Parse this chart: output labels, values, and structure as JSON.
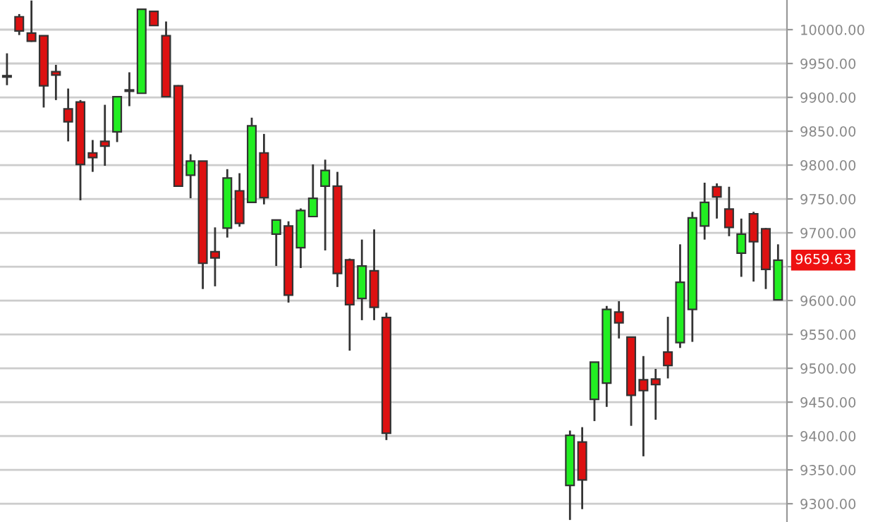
{
  "chart_data": {
    "type": "candlestick",
    "categories": [
      null,
      null,
      null,
      null,
      null,
      null,
      null,
      null,
      null,
      null,
      null,
      null,
      null,
      null,
      null,
      null,
      null,
      null,
      null,
      null,
      null,
      null,
      null,
      null,
      null,
      null,
      null,
      null,
      null,
      null,
      null,
      null,
      null,
      null,
      null,
      null,
      null,
      null,
      null,
      null,
      null,
      null,
      null,
      null,
      null,
      null,
      null,
      null,
      null,
      null,
      null,
      null,
      null,
      null,
      null,
      null,
      null,
      null,
      null,
      null,
      null,
      null,
      null,
      null
    ],
    "ohlc": [
      [
        9932,
        9965,
        9918,
        9930
      ],
      [
        10019,
        10023,
        9992,
        9998
      ],
      [
        9995,
        10043,
        9982,
        9983
      ],
      [
        9991,
        9991,
        9885,
        9917
      ],
      [
        9938,
        9948,
        9896,
        9933
      ],
      [
        9883,
        9913,
        9835,
        9864
      ],
      [
        9893,
        9896,
        9748,
        9801
      ],
      [
        9818,
        9837,
        9790,
        9811
      ],
      [
        9835,
        9889,
        9799,
        9828
      ],
      [
        9849,
        9901,
        9834,
        9901
      ],
      [
        9910,
        9937,
        9887,
        9910
      ],
      [
        9906,
        10030,
        9906,
        10030
      ],
      [
        10027,
        10027,
        10006,
        10006
      ],
      [
        9991,
        10012,
        9901,
        9901
      ],
      [
        9917,
        9918,
        9769,
        9769
      ],
      [
        9785,
        9816,
        9751,
        9806
      ],
      [
        9806,
        9806,
        9617,
        9655
      ],
      [
        9672,
        9708,
        9621,
        9663
      ],
      [
        9707,
        9794,
        9693,
        9781
      ],
      [
        9762,
        9788,
        9709,
        9714
      ],
      [
        9745,
        9870,
        9745,
        9858
      ],
      [
        9818,
        9846,
        9742,
        9752
      ],
      [
        9698,
        9719,
        9651,
        9719
      ],
      [
        9710,
        9717,
        9597,
        9608
      ],
      [
        9678,
        9736,
        9648,
        9733
      ],
      [
        9724,
        9801,
        9724,
        9751
      ],
      [
        9769,
        9808,
        9674,
        9792
      ],
      [
        9769,
        9790,
        9620,
        9640
      ],
      [
        9660,
        9662,
        9526,
        9594
      ],
      [
        9603,
        9690,
        9571,
        9651
      ],
      [
        9644,
        9705,
        9571,
        9590
      ],
      [
        9575,
        9582,
        9394,
        9404
      ],
      null,
      null,
      null,
      null,
      null,
      null,
      null,
      null,
      null,
      null,
      null,
      null,
      null,
      null,
      [
        9327,
        9408,
        9276,
        9401
      ],
      [
        9391,
        9413,
        9292,
        9335
      ],
      [
        9454,
        9509,
        9422,
        9509
      ],
      [
        9478,
        9592,
        9443,
        9587
      ],
      [
        9583,
        9599,
        9544,
        9567
      ],
      [
        9546,
        9546,
        9415,
        9460
      ],
      [
        9483,
        9518,
        9370,
        9467
      ],
      [
        9484,
        9499,
        9424,
        9476
      ],
      [
        9524,
        9576,
        9485,
        9504
      ],
      [
        9538,
        9683,
        9530,
        9627
      ],
      [
        9587,
        9731,
        9539,
        9722
      ],
      [
        9710,
        9774,
        9690,
        9745
      ],
      [
        9768,
        9773,
        9721,
        9753
      ],
      [
        9735,
        9768,
        9695,
        9708
      ],
      [
        9670,
        9721,
        9635,
        9698
      ],
      [
        9728,
        9731,
        9628,
        9687
      ],
      [
        9706,
        9707,
        9617,
        9646
      ],
      [
        9601,
        9683,
        9601,
        9659.63
      ]
    ],
    "colors": [
      "#dd1111",
      "#dd1111",
      "#dd1111",
      "#dd1111",
      "#dd1111",
      "#dd1111",
      "#dd1111",
      "#dd1111",
      "#dd1111",
      "#22ee22",
      "#dd1111",
      "#22ee22",
      "#dd1111",
      "#dd1111",
      "#dd1111",
      "#22ee22",
      "#dd1111",
      "#dd1111",
      "#22ee22",
      "#dd1111",
      "#22ee22",
      "#dd1111",
      "#22ee22",
      "#dd1111",
      "#22ee22",
      "#22ee22",
      "#22ee22",
      "#dd1111",
      "#dd1111",
      "#22ee22",
      "#dd1111",
      "#dd1111",
      null,
      null,
      null,
      null,
      null,
      null,
      null,
      null,
      null,
      null,
      null,
      null,
      null,
      null,
      "#22ee22",
      "#dd1111",
      "#22ee22",
      "#22ee22",
      "#dd1111",
      "#dd1111",
      "#dd1111",
      "#dd1111",
      "#dd1111",
      "#22ee22",
      "#22ee22",
      "#22ee22",
      "#dd1111",
      "#dd1111",
      "#22ee22",
      "#dd1111",
      "#dd1111",
      "#22ee22"
    ],
    "ylim": [
      9273,
      10043.75
    ],
    "yticks": [
      {
        "value": 9300,
        "label": "9300.00"
      },
      {
        "value": 9350,
        "label": "9350.00"
      },
      {
        "value": 9400,
        "label": "9400.00"
      },
      {
        "value": 9450,
        "label": "9450.00"
      },
      {
        "value": 9500,
        "label": "9500.00"
      },
      {
        "value": 9550,
        "label": "9550.00"
      },
      {
        "value": 9600,
        "label": "9600.00"
      },
      {
        "value": 9650,
        "label": null
      },
      {
        "value": 9700,
        "label": "9700.00"
      },
      {
        "value": 9750,
        "label": "9750.00"
      },
      {
        "value": 9800,
        "label": "9800.00"
      },
      {
        "value": 9850,
        "label": "9850.00"
      },
      {
        "value": 9900,
        "label": "9900.00"
      },
      {
        "value": 9950,
        "label": "9950.00"
      },
      {
        "value": 10000,
        "label": "10000.00"
      }
    ],
    "grid": "y",
    "annotations": [
      "9659.63"
    ]
  }
}
